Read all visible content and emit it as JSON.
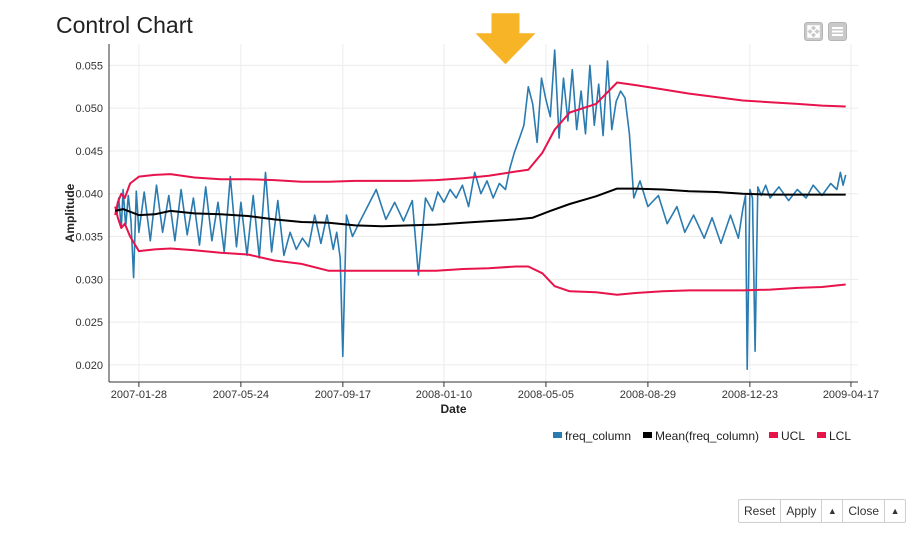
{
  "title": "Control Chart",
  "toolbar": {
    "icons": [
      "expand-icon",
      "menu-icon"
    ]
  },
  "buttons": {
    "reset": "Reset",
    "apply": "Apply",
    "close": "Close",
    "caret": "▲"
  },
  "colors": {
    "freq": "#2a7bb0",
    "mean": "#000000",
    "ucl": "#e8134b",
    "lcl": "#e8134b",
    "arrow": "#f7b426"
  },
  "chart_data": {
    "type": "line",
    "xlabel": "Date",
    "ylabel": "Amplitude",
    "xlim": [
      "2006-12-25",
      "2009-04-25"
    ],
    "ylim": [
      0.018,
      0.0575
    ],
    "x_ticks": [
      "2007-01-28",
      "2007-05-24",
      "2007-09-17",
      "2008-01-10",
      "2008-05-05",
      "2008-08-29",
      "2008-12-23",
      "2009-04-17"
    ],
    "y_ticks": [
      "0.020",
      "0.025",
      "0.030",
      "0.035",
      "0.040",
      "0.045",
      "0.050",
      "0.055"
    ],
    "grid": true,
    "legend": "bottom-right",
    "legend_entries": [
      "freq_column",
      "Mean(freq_column)",
      "UCL",
      "LCL"
    ],
    "annotation": {
      "type": "arrow",
      "x": "2008-03-20",
      "y": 0.057
    },
    "series": [
      {
        "name": "freq_column",
        "color": "#2a7bb0",
        "x": [
          "2007-01-03",
          "2007-01-05",
          "2007-01-08",
          "2007-01-10",
          "2007-01-13",
          "2007-01-16",
          "2007-01-19",
          "2007-01-22",
          "2007-01-25",
          "2007-01-28",
          "2007-02-03",
          "2007-02-10",
          "2007-02-17",
          "2007-02-24",
          "2007-03-03",
          "2007-03-10",
          "2007-03-17",
          "2007-03-24",
          "2007-03-31",
          "2007-04-07",
          "2007-04-14",
          "2007-04-21",
          "2007-04-28",
          "2007-05-05",
          "2007-05-12",
          "2007-05-19",
          "2007-05-24",
          "2007-05-31",
          "2007-06-07",
          "2007-06-14",
          "2007-06-21",
          "2007-06-28",
          "2007-07-05",
          "2007-07-12",
          "2007-07-19",
          "2007-07-26",
          "2007-08-02",
          "2007-08-09",
          "2007-08-16",
          "2007-08-23",
          "2007-08-30",
          "2007-09-06",
          "2007-09-10",
          "2007-09-14",
          "2007-09-17",
          "2007-09-21",
          "2007-09-28",
          "2007-10-05",
          "2007-10-15",
          "2007-10-25",
          "2007-11-05",
          "2007-11-15",
          "2007-11-25",
          "2007-12-05",
          "2007-12-12",
          "2007-12-20",
          "2007-12-28",
          "2008-01-03",
          "2008-01-10",
          "2008-01-17",
          "2008-01-24",
          "2008-01-31",
          "2008-02-07",
          "2008-02-14",
          "2008-02-21",
          "2008-02-28",
          "2008-03-06",
          "2008-03-13",
          "2008-03-20",
          "2008-03-25",
          "2008-03-30",
          "2008-04-05",
          "2008-04-10",
          "2008-04-15",
          "2008-04-20",
          "2008-04-25",
          "2008-04-30",
          "2008-05-05",
          "2008-05-10",
          "2008-05-15",
          "2008-05-20",
          "2008-05-25",
          "2008-05-30",
          "2008-06-04",
          "2008-06-09",
          "2008-06-14",
          "2008-06-19",
          "2008-06-24",
          "2008-06-29",
          "2008-07-04",
          "2008-07-09",
          "2008-07-14",
          "2008-07-19",
          "2008-07-24",
          "2008-07-29",
          "2008-08-03",
          "2008-08-08",
          "2008-08-13",
          "2008-08-20",
          "2008-08-29",
          "2008-09-10",
          "2008-09-20",
          "2008-10-01",
          "2008-10-10",
          "2008-10-20",
          "2008-11-01",
          "2008-11-10",
          "2008-11-20",
          "2008-12-01",
          "2008-12-10",
          "2008-12-15",
          "2008-12-18",
          "2008-12-20",
          "2008-12-23",
          "2008-12-26",
          "2008-12-29",
          "2009-01-01",
          "2009-01-05",
          "2009-01-10",
          "2009-01-15",
          "2009-01-25",
          "2009-02-05",
          "2009-02-15",
          "2009-02-25",
          "2009-03-05",
          "2009-03-15",
          "2009-03-25",
          "2009-04-01",
          "2009-04-05",
          "2009-04-08",
          "2009-04-11"
        ],
        "values": [
          0.0375,
          0.0395,
          0.036,
          0.0405,
          0.0362,
          0.0398,
          0.0368,
          0.0302,
          0.0403,
          0.0355,
          0.0402,
          0.0345,
          0.041,
          0.0355,
          0.0398,
          0.0345,
          0.0405,
          0.0352,
          0.0395,
          0.034,
          0.0408,
          0.0345,
          0.039,
          0.0332,
          0.042,
          0.0338,
          0.039,
          0.0328,
          0.0398,
          0.0325,
          0.0425,
          0.0332,
          0.0392,
          0.0328,
          0.0355,
          0.0335,
          0.0348,
          0.0338,
          0.0375,
          0.0342,
          0.0375,
          0.0335,
          0.0355,
          0.0325,
          0.021,
          0.0375,
          0.035,
          0.0365,
          0.0385,
          0.0405,
          0.037,
          0.039,
          0.0368,
          0.0392,
          0.0305,
          0.0395,
          0.038,
          0.0402,
          0.039,
          0.0405,
          0.0395,
          0.041,
          0.0385,
          0.0425,
          0.04,
          0.0415,
          0.0395,
          0.0412,
          0.0405,
          0.043,
          0.0448,
          0.0465,
          0.048,
          0.0525,
          0.0505,
          0.046,
          0.0535,
          0.051,
          0.049,
          0.0568,
          0.0465,
          0.0535,
          0.0485,
          0.0545,
          0.0475,
          0.052,
          0.047,
          0.055,
          0.048,
          0.0528,
          0.0468,
          0.0555,
          0.0475,
          0.0508,
          0.052,
          0.0512,
          0.047,
          0.0395,
          0.0415,
          0.0385,
          0.0398,
          0.0365,
          0.0385,
          0.0355,
          0.0375,
          0.0348,
          0.0372,
          0.0342,
          0.0375,
          0.0348,
          0.0382,
          0.0398,
          0.0195,
          0.0405,
          0.0395,
          0.0216,
          0.0408,
          0.0398,
          0.041,
          0.0395,
          0.0408,
          0.0392,
          0.0405,
          0.0395,
          0.041,
          0.0398,
          0.0412,
          0.0405,
          0.0425,
          0.041,
          0.0422
        ]
      },
      {
        "name": "Mean(freq_column)",
        "color": "#000000",
        "x": [
          "2007-01-01",
          "2007-01-10",
          "2007-01-28",
          "2007-02-15",
          "2007-03-05",
          "2007-04-01",
          "2007-05-01",
          "2007-06-01",
          "2007-07-01",
          "2007-08-01",
          "2007-09-01",
          "2007-10-01",
          "2007-11-01",
          "2007-12-01",
          "2008-01-01",
          "2008-02-01",
          "2008-03-01",
          "2008-04-01",
          "2008-04-20",
          "2008-05-10",
          "2008-06-01",
          "2008-07-01",
          "2008-07-25",
          "2008-08-15",
          "2008-09-15",
          "2008-10-15",
          "2008-11-15",
          "2008-12-15",
          "2009-01-15",
          "2009-02-15",
          "2009-03-15",
          "2009-04-11"
        ],
        "values": [
          0.038,
          0.0382,
          0.0375,
          0.0376,
          0.038,
          0.0377,
          0.0376,
          0.0374,
          0.037,
          0.0367,
          0.0366,
          0.0363,
          0.0362,
          0.0363,
          0.0364,
          0.0366,
          0.0368,
          0.037,
          0.0372,
          0.038,
          0.0388,
          0.0397,
          0.0406,
          0.0406,
          0.0405,
          0.0403,
          0.0402,
          0.04,
          0.0399,
          0.0399,
          0.0399,
          0.0399
        ]
      },
      {
        "name": "UCL",
        "color": "#e8134b",
        "x": [
          "2007-01-01",
          "2007-01-04",
          "2007-01-08",
          "2007-01-12",
          "2007-01-18",
          "2007-01-28",
          "2007-02-15",
          "2007-03-05",
          "2007-04-01",
          "2007-05-01",
          "2007-06-01",
          "2007-07-01",
          "2007-08-01",
          "2007-09-01",
          "2007-10-01",
          "2007-11-01",
          "2007-12-01",
          "2008-01-01",
          "2008-02-01",
          "2008-03-01",
          "2008-04-01",
          "2008-04-15",
          "2008-05-01",
          "2008-05-15",
          "2008-06-01",
          "2008-07-01",
          "2008-07-25",
          "2008-08-15",
          "2008-09-15",
          "2008-10-15",
          "2008-11-15",
          "2008-12-15",
          "2009-01-15",
          "2009-02-15",
          "2009-03-15",
          "2009-04-11"
        ],
        "values": [
          0.0375,
          0.039,
          0.04,
          0.0395,
          0.0412,
          0.042,
          0.0422,
          0.0423,
          0.0419,
          0.0417,
          0.0417,
          0.0416,
          0.0414,
          0.0414,
          0.0415,
          0.0415,
          0.0415,
          0.0416,
          0.0418,
          0.0421,
          0.0426,
          0.0428,
          0.0448,
          0.0475,
          0.0495,
          0.0505,
          0.053,
          0.0527,
          0.0522,
          0.0517,
          0.0513,
          0.0509,
          0.0507,
          0.0505,
          0.0503,
          0.0502
        ]
      },
      {
        "name": "LCL",
        "color": "#e8134b",
        "x": [
          "2007-01-01",
          "2007-01-04",
          "2007-01-08",
          "2007-01-12",
          "2007-01-18",
          "2007-01-28",
          "2007-02-15",
          "2007-03-05",
          "2007-04-01",
          "2007-05-01",
          "2007-06-01",
          "2007-07-01",
          "2007-08-01",
          "2007-09-01",
          "2007-10-01",
          "2007-11-01",
          "2007-12-01",
          "2008-01-01",
          "2008-02-01",
          "2008-03-01",
          "2008-04-01",
          "2008-04-15",
          "2008-05-01",
          "2008-05-15",
          "2008-06-01",
          "2008-07-01",
          "2008-07-25",
          "2008-08-15",
          "2008-09-15",
          "2008-10-15",
          "2008-11-15",
          "2008-12-15",
          "2009-01-15",
          "2009-02-15",
          "2009-03-15",
          "2009-04-11"
        ],
        "values": [
          0.0385,
          0.0372,
          0.036,
          0.0365,
          0.035,
          0.0333,
          0.0335,
          0.0336,
          0.0334,
          0.0331,
          0.0329,
          0.0322,
          0.0318,
          0.031,
          0.031,
          0.031,
          0.031,
          0.031,
          0.0312,
          0.0313,
          0.0315,
          0.0315,
          0.0307,
          0.0292,
          0.0286,
          0.0285,
          0.0282,
          0.0284,
          0.0286,
          0.0287,
          0.0287,
          0.0287,
          0.0288,
          0.029,
          0.0291,
          0.0294
        ]
      }
    ]
  }
}
